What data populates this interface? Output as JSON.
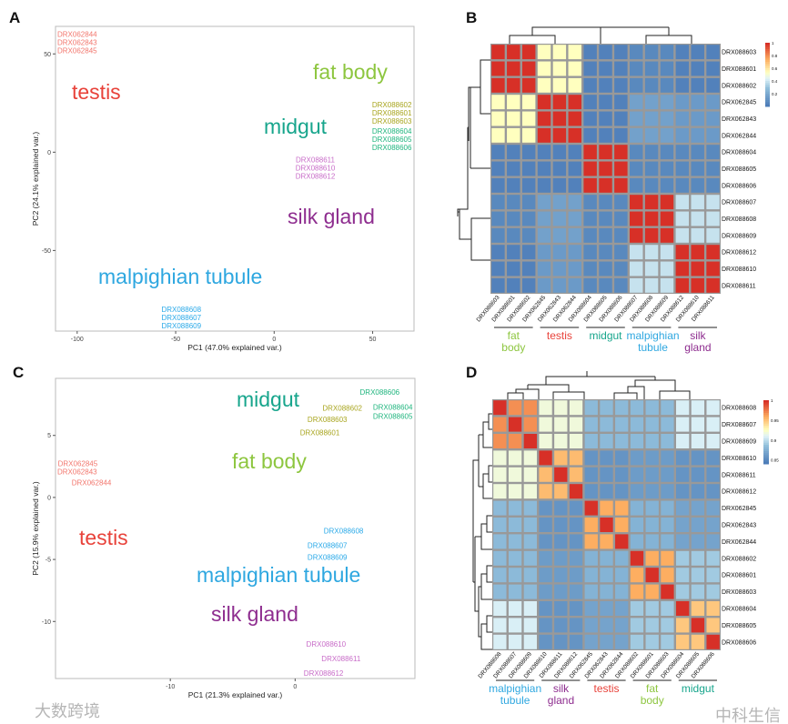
{
  "panels": {
    "a": "A",
    "b": "B",
    "c": "C",
    "d": "D"
  },
  "colors": {
    "testis": "#e8423a",
    "fat_body": "#8dc63f",
    "midgut": "#17a58c",
    "malpighian": "#2ea7e0",
    "silk": "#8e2d8f"
  },
  "annotations": {
    "a": {
      "testis": "testis",
      "fat_body": "fat body",
      "midgut": "midgut",
      "silk": "silk gland",
      "malpighian": "malpighian tubule"
    },
    "c": {
      "testis": "testis",
      "fat_body": "fat body",
      "midgut": "midgut",
      "silk": "silk gland",
      "malpighian": "malpighian tubule"
    }
  },
  "group_labels": {
    "b": [
      [
        "fat",
        "body"
      ],
      [
        "testis",
        ""
      ],
      [
        "midgut",
        ""
      ],
      [
        "malpighian",
        "tubule"
      ],
      [
        "silk",
        "gland"
      ]
    ],
    "d": [
      [
        "malpighian",
        "tubule"
      ],
      [
        "silk",
        "gland"
      ],
      [
        "testis",
        ""
      ],
      [
        "fat",
        "body"
      ],
      [
        "midgut",
        ""
      ]
    ]
  },
  "watermarks": {
    "left": "大数跨境",
    "right": "中科生信"
  },
  "chart_data": [
    {
      "type": "scatter",
      "panel": "A",
      "xlabel": "PC1 (47.0% explained var.)",
      "ylabel": "PC2 (24.1% explained var.)",
      "xlim": [
        -111,
        71
      ],
      "ylim": [
        -91,
        64
      ],
      "xticks": [
        -100,
        -50,
        0,
        50
      ],
      "yticks": [
        -50,
        0,
        50
      ],
      "points": [
        {
          "label": "DRX062843",
          "group": "testis",
          "x": -103,
          "y": 56
        },
        {
          "label": "DRX062844",
          "group": "testis",
          "x": -103,
          "y": 56
        },
        {
          "label": "DRX062845",
          "group": "testis",
          "x": -103,
          "y": 56
        },
        {
          "label": "DRX088601",
          "group": "fat_body",
          "x": 68,
          "y": 20
        },
        {
          "label": "DRX088602",
          "group": "fat_body",
          "x": 68,
          "y": 20
        },
        {
          "label": "DRX088603",
          "group": "fat_body",
          "x": 68,
          "y": 20
        },
        {
          "label": "DRX088604",
          "group": "midgut",
          "x": 68,
          "y": 15
        },
        {
          "label": "DRX088605",
          "group": "midgut",
          "x": 68,
          "y": 15
        },
        {
          "label": "DRX088606",
          "group": "midgut",
          "x": 68,
          "y": 15
        },
        {
          "label": "DRX088610",
          "group": "silk",
          "x": 21,
          "y": -8
        },
        {
          "label": "DRX088611",
          "group": "silk",
          "x": 21,
          "y": -8
        },
        {
          "label": "DRX088612",
          "group": "silk",
          "x": 21,
          "y": -8
        },
        {
          "label": "DRX088607",
          "group": "malpighian",
          "x": -47,
          "y": -84
        },
        {
          "label": "DRX088608",
          "group": "malpighian",
          "x": -47,
          "y": -84
        },
        {
          "label": "DRX088609",
          "group": "malpighian",
          "x": -47,
          "y": -84
        }
      ]
    },
    {
      "type": "heatmap",
      "panel": "B",
      "samples": [
        "DRX088603",
        "DRX088601",
        "DRX088602",
        "DRX062845",
        "DRX062843",
        "DRX062844",
        "DRX088604",
        "DRX088605",
        "DRX088606",
        "DRX088607",
        "DRX088608",
        "DRX088609",
        "DRX088612",
        "DRX088610",
        "DRX088611"
      ],
      "groups": [
        "fat_body",
        "testis",
        "midgut",
        "malpighian",
        "silk"
      ],
      "block_values": [
        [
          1,
          0.55,
          0.05,
          0.08,
          0.05
        ],
        [
          0.55,
          1,
          0.05,
          0.18,
          0.15
        ],
        [
          0.05,
          0.05,
          1,
          0.08,
          0.08
        ],
        [
          0.08,
          0.18,
          0.08,
          1,
          0.4
        ],
        [
          0.05,
          0.15,
          0.08,
          0.4,
          1
        ]
      ],
      "diagonal": 1,
      "scale": [
        0,
        1
      ],
      "legend_ticks": [
        "0.2",
        "0.4",
        "0.6",
        "0.8",
        "1"
      ]
    },
    {
      "type": "scatter",
      "panel": "C",
      "xlabel": "PC1 (21.3% explained var.)",
      "ylabel": "PC2 (15.9% explained var.)",
      "xlim": [
        -19.2,
        9.6
      ],
      "ylim": [
        -14.6,
        9.6
      ],
      "xticks": [
        -10,
        0
      ],
      "yticks": [
        -10,
        -5,
        0,
        5
      ],
      "points": [
        {
          "label": "DRX088606",
          "group": "midgut",
          "x": 6.8,
          "y": 8.5
        },
        {
          "label": "DRX088604",
          "group": "midgut",
          "x": 7.9,
          "y": 7.3
        },
        {
          "label": "DRX088605",
          "group": "midgut",
          "x": 9.0,
          "y": 7.2
        },
        {
          "label": "DRX088603",
          "group": "fat_body",
          "x": 2.6,
          "y": 6.3
        },
        {
          "label": "DRX088601",
          "group": "fat_body",
          "x": 2.0,
          "y": 5.9
        },
        {
          "label": "DRX088602",
          "group": "fat_body",
          "x": 3.8,
          "y": 5.9
        },
        {
          "label": "DRX062843",
          "group": "testis",
          "x": -18.6,
          "y": 2.1
        },
        {
          "label": "DRX062845",
          "group": "testis",
          "x": -17.4,
          "y": 2.1
        },
        {
          "label": "DRX062844",
          "group": "testis",
          "x": -16.3,
          "y": 1.2
        },
        {
          "label": "DRX088608",
          "group": "malpighian",
          "x": 3.9,
          "y": -2.7
        },
        {
          "label": "DRX088607",
          "group": "malpighian",
          "x": 2.6,
          "y": -3.2
        },
        {
          "label": "DRX088609",
          "group": "malpighian",
          "x": 2.6,
          "y": -3.5
        },
        {
          "label": "DRX088610",
          "group": "silk",
          "x": 2.5,
          "y": -11.8
        },
        {
          "label": "DRX088611",
          "group": "silk",
          "x": 3.7,
          "y": -13.0
        },
        {
          "label": "DRX088612",
          "group": "silk",
          "x": 2.3,
          "y": -13.5
        }
      ]
    },
    {
      "type": "heatmap",
      "panel": "D",
      "samples": [
        "DRX088608",
        "DRX088607",
        "DRX088609",
        "DRX088610",
        "DRX088611",
        "DRX088612",
        "DRX062845",
        "DRX062843",
        "DRX062844",
        "DRX088602",
        "DRX088601",
        "DRX088603",
        "DRX088604",
        "DRX088605",
        "DRX088606"
      ],
      "groups": [
        "malpighian",
        "silk",
        "testis",
        "fat_body",
        "midgut"
      ],
      "block_values": [
        [
          0.97,
          0.92,
          0.885,
          0.885,
          0.91
        ],
        [
          0.92,
          0.955,
          0.86,
          0.865,
          0.86
        ],
        [
          0.885,
          0.86,
          0.96,
          0.88,
          0.87
        ],
        [
          0.885,
          0.865,
          0.88,
          0.96,
          0.893
        ],
        [
          0.91,
          0.86,
          0.87,
          0.893,
          0.95
        ]
      ],
      "diagonal": 1,
      "scale": [
        0.84,
        1
      ],
      "legend_ticks": [
        "0.85",
        "0.9",
        "0.95",
        "1"
      ]
    }
  ]
}
